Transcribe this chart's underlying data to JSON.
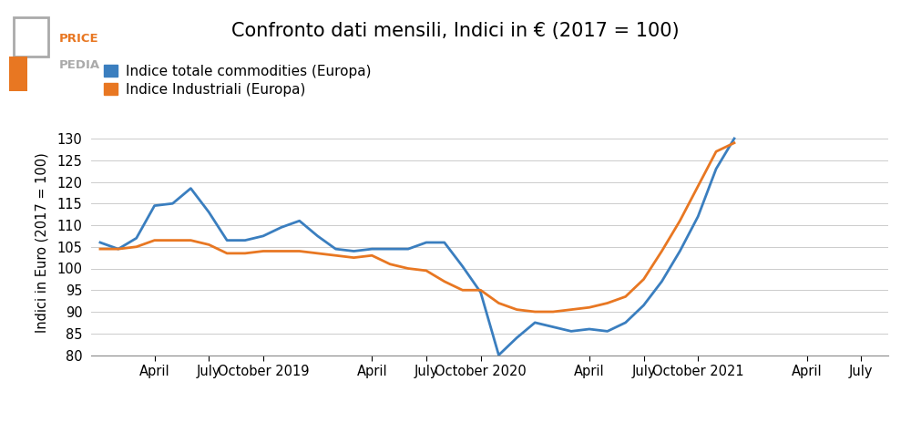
{
  "title": "Confronto dati mensili, Indici in € (2017 = 100)",
  "ylabel": "Indici in Euro (2017 = 100)",
  "legend": [
    "Indice totale commodities (Europa)",
    "Indice Industriali (Europa)"
  ],
  "colors": [
    "#3a7ebf",
    "#e87722"
  ],
  "ylim": [
    80,
    132
  ],
  "yticks": [
    80,
    85,
    90,
    95,
    100,
    105,
    110,
    115,
    120,
    125,
    130
  ],
  "blue_line": [
    106.0,
    104.5,
    107.0,
    114.5,
    115.0,
    118.5,
    113.0,
    106.5,
    106.5,
    107.5,
    109.5,
    111.0,
    107.5,
    104.5,
    104.0,
    104.5,
    104.5,
    104.5,
    106.0,
    106.0,
    100.5,
    94.5,
    80.0,
    84.0,
    87.5,
    86.5,
    85.5,
    86.0,
    85.5,
    87.5,
    91.5,
    97.0,
    104.0,
    112.0,
    123.0,
    130.0
  ],
  "orange_line": [
    104.5,
    104.5,
    105.0,
    106.5,
    106.5,
    106.5,
    105.5,
    103.5,
    103.5,
    104.0,
    104.0,
    104.0,
    103.5,
    103.0,
    102.5,
    103.0,
    101.0,
    100.0,
    99.5,
    97.0,
    95.0,
    95.0,
    92.0,
    90.5,
    90.0,
    90.0,
    90.5,
    91.0,
    92.0,
    93.5,
    97.5,
    104.0,
    111.0,
    119.0,
    127.0,
    129.0
  ],
  "tick_positions": [
    3,
    6,
    9,
    15,
    18,
    21,
    27,
    30,
    33,
    39,
    42
  ],
  "tick_labels": [
    "April",
    "July",
    "October 2019",
    "April",
    "July",
    "October 2020",
    "April",
    "July",
    "October 2021",
    "April",
    "July"
  ],
  "xlim": [
    -0.5,
    43.5
  ],
  "background_color": "#ffffff",
  "title_fontsize": 15,
  "axis_fontsize": 10.5,
  "legend_fontsize": 11
}
